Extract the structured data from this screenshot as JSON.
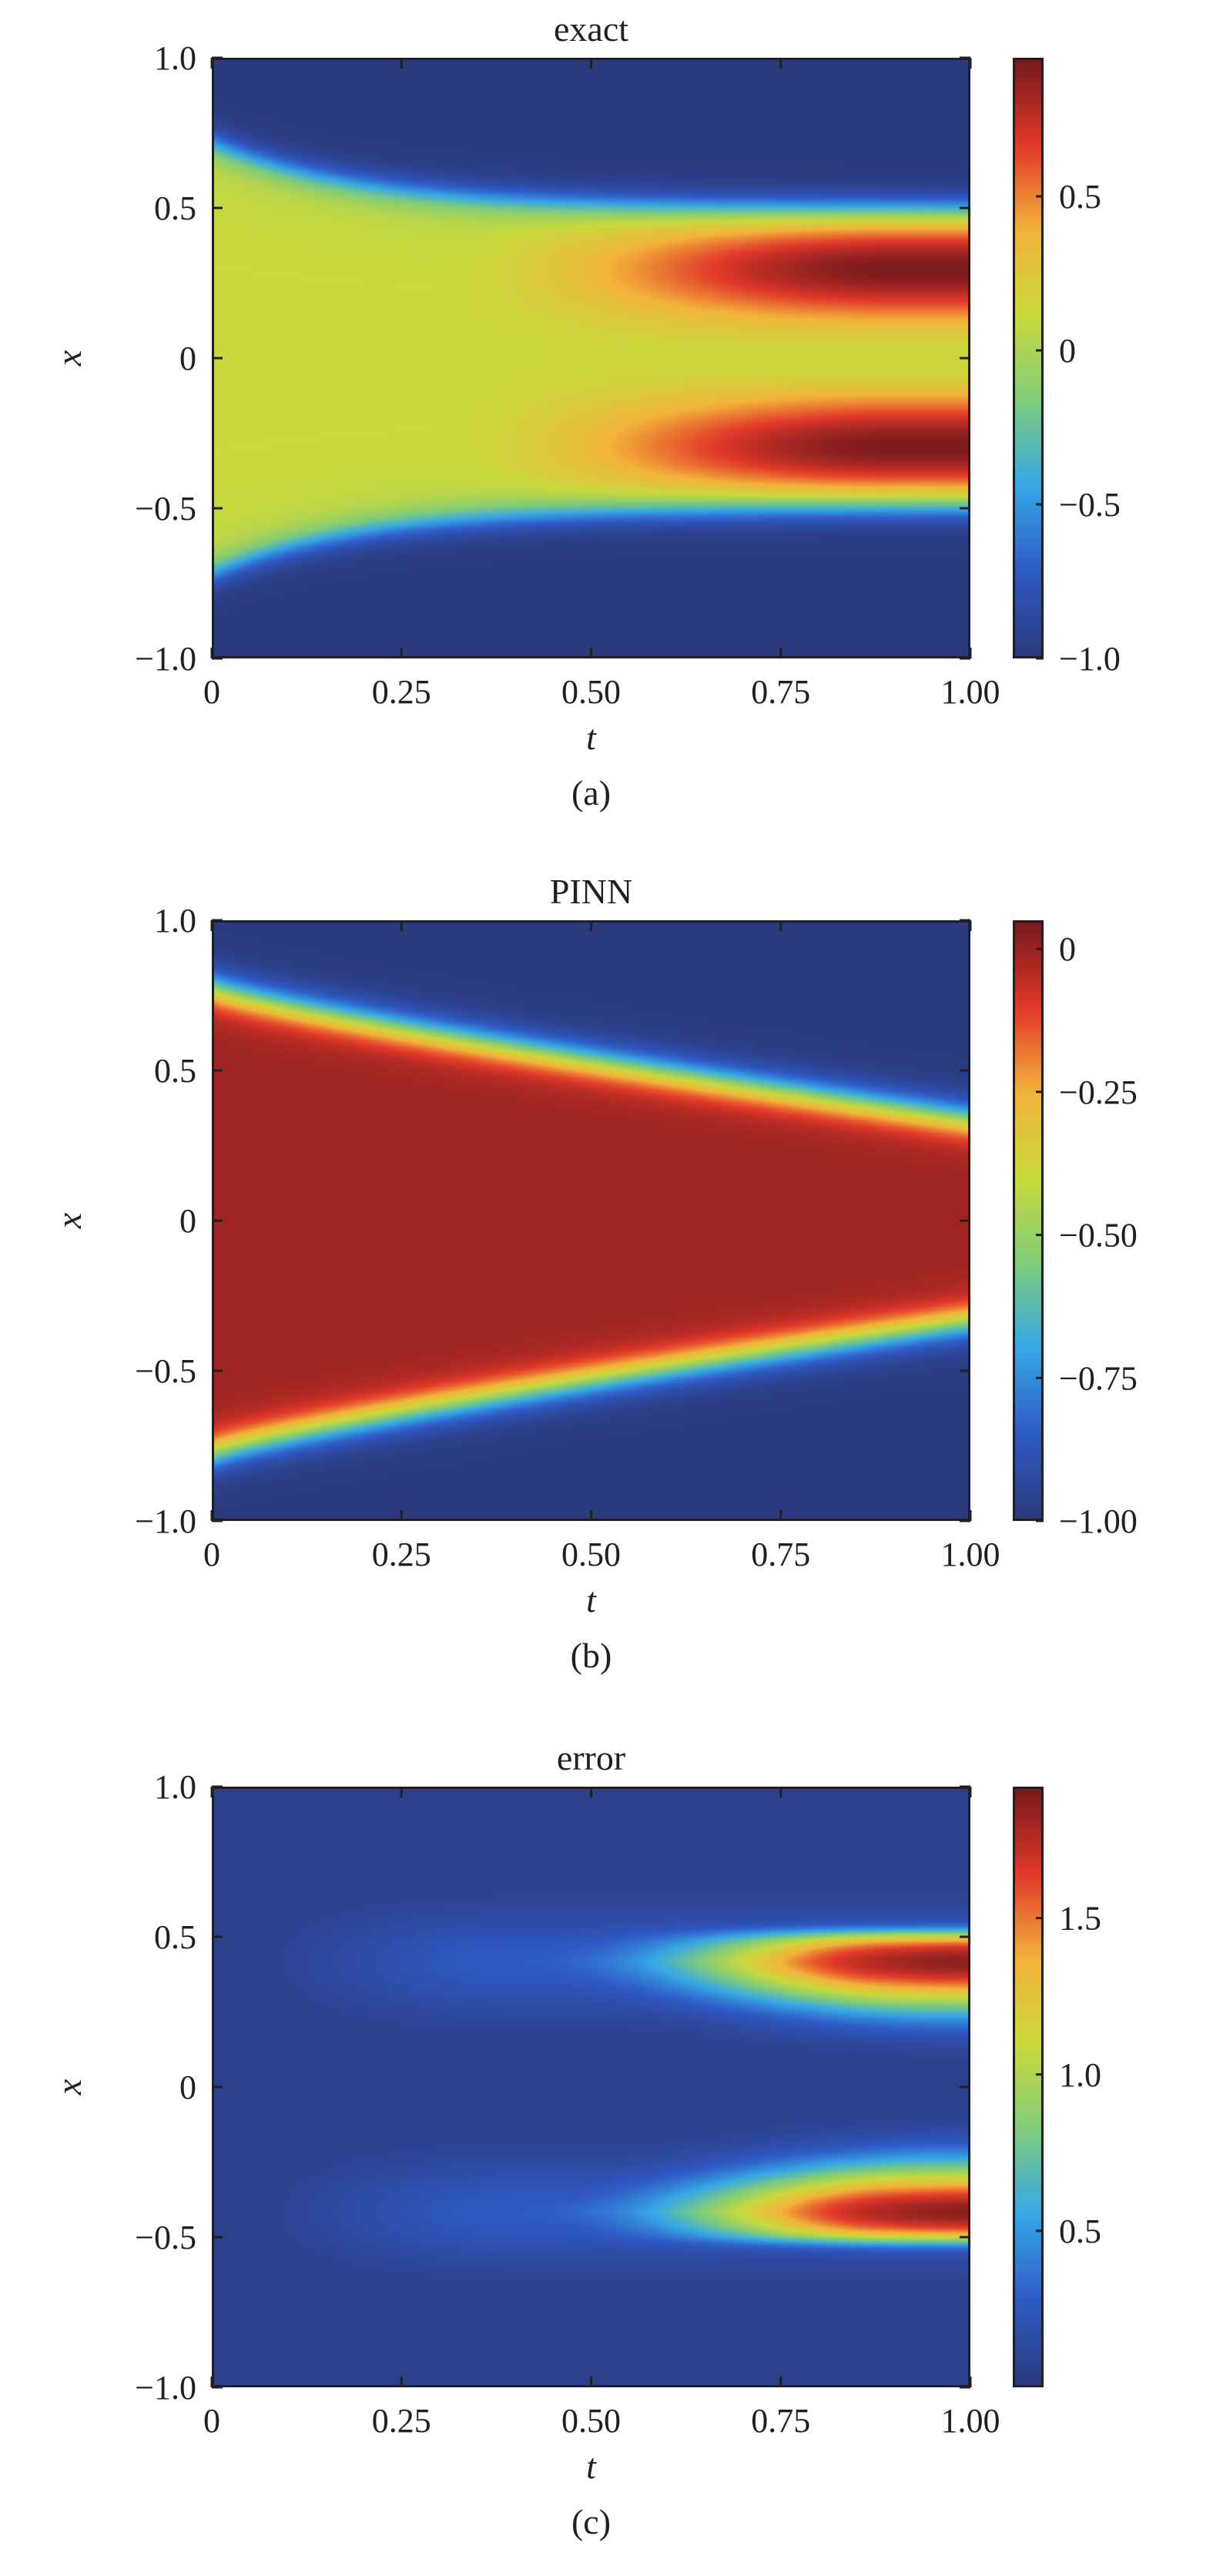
{
  "chart_data": [
    {
      "type": "heatmap",
      "title": "exact",
      "xlabel": "t",
      "ylabel": "x",
      "caption": "(a)",
      "xlim": [
        0,
        1
      ],
      "ylim": [
        -1,
        1
      ],
      "x_ticks": [
        0,
        0.25,
        0.5,
        0.75,
        1.0
      ],
      "x_tick_labels": [
        "0",
        "0.25",
        "0.50",
        "0.75",
        "1.00"
      ],
      "y_ticks": [
        1.0,
        0.5,
        0,
        -0.5,
        -1.0
      ],
      "y_tick_labels": [
        "1.0",
        "0.5",
        "0",
        "−0.5",
        "−1.0"
      ],
      "colorbar": {
        "range": [
          -1.0,
          0.95
        ],
        "ticks": [
          0.5,
          0,
          -0.5,
          -1.0
        ],
        "tick_labels": [
          "0.5",
          "0",
          "−0.5",
          "−1.0"
        ]
      },
      "colormap": "jet",
      "field_description_values": {
        "outer_value": -1.0,
        "initial_amplitude": 0.0,
        "initial_support_halfwidth": 0.72,
        "peak_value": 0.95,
        "peak_centers_x": [
          0.3,
          -0.3
        ],
        "front_x_at_t1": 0.5,
        "central_dip_x": 0.0
      }
    },
    {
      "type": "heatmap",
      "title": "PINN",
      "xlabel": "t",
      "ylabel": "x",
      "caption": "(b)",
      "xlim": [
        0,
        1
      ],
      "ylim": [
        -1,
        1
      ],
      "x_ticks": [
        0,
        0.25,
        0.5,
        0.75,
        1.0
      ],
      "x_tick_labels": [
        "0",
        "0.25",
        "0.50",
        "0.75",
        "1.00"
      ],
      "y_ticks": [
        1.0,
        0.5,
        0,
        -0.5,
        -1.0
      ],
      "y_tick_labels": [
        "1.0",
        "0.5",
        "0",
        "−0.5",
        "−1.0"
      ],
      "colorbar": {
        "range": [
          -1.0,
          0.05
        ],
        "ticks": [
          0,
          -0.25,
          -0.5,
          -0.75,
          -1.0
        ],
        "tick_labels": [
          "0",
          "−0.25",
          "−0.50",
          "−0.75",
          "−1.00"
        ]
      },
      "colormap": "jet",
      "field_description_values": {
        "outer_value": -1.0,
        "inner_value": 0.0,
        "front_x_at_t0": 0.78,
        "front_x_at_t1": 0.34
      }
    },
    {
      "type": "heatmap",
      "title": "error",
      "xlabel": "t",
      "ylabel": "x",
      "caption": "(c)",
      "xlim": [
        0,
        1
      ],
      "ylim": [
        -1,
        1
      ],
      "x_ticks": [
        0,
        0.25,
        0.5,
        0.75,
        1.0
      ],
      "x_tick_labels": [
        "0",
        "0.25",
        "0.50",
        "0.75",
        "1.00"
      ],
      "y_ticks": [
        1.0,
        0.5,
        0,
        -0.5,
        -1.0
      ],
      "y_tick_labels": [
        "1.0",
        "0.5",
        "0",
        "−0.5",
        "−1.0"
      ],
      "colorbar": {
        "range": [
          0.0,
          1.92
        ],
        "ticks": [
          1.5,
          1.0,
          0.5
        ],
        "tick_labels": [
          "1.5",
          "1.0",
          "0.5"
        ]
      },
      "colormap": "jet",
      "field_description_values": {
        "background_value": 0.05,
        "peak_value": 1.9,
        "peak_centers_x": [
          0.42,
          -0.42
        ],
        "front_x_at_t1": 0.5
      }
    }
  ],
  "colors": {
    "axis": "#231f20",
    "jet_stops": [
      "#2b3a7e",
      "#2f5bc7",
      "#36a8e6",
      "#7fcc7a",
      "#c9d93c",
      "#f3b43a",
      "#e2392a",
      "#7a1a1d"
    ]
  }
}
